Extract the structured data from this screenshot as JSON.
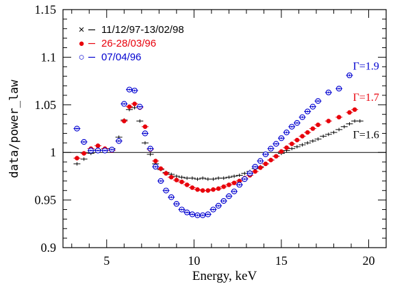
{
  "chart_data": {
    "type": "scatter",
    "xlabel": "Energy, keV",
    "ylabel": "data/power_law",
    "xlim": [
      2.5,
      21
    ],
    "ylim": [
      0.9,
      1.15
    ],
    "xticks": [
      5,
      10,
      15,
      20
    ],
    "yticks": [
      0.9,
      0.95,
      1,
      1.05,
      1.1,
      1.15
    ],
    "ytick_labels": [
      "0.9",
      "0.95",
      "1",
      "1.05",
      "1.1",
      "1.15"
    ],
    "reference_line": 1,
    "grid": false,
    "legend_position": "top-left",
    "series": [
      {
        "name": "11/12/97-13/02/98",
        "marker_label": "×",
        "color": "#000000",
        "marker": "cross",
        "x": [
          3.3,
          3.7,
          4.1,
          4.5,
          4.9,
          5.3,
          5.7,
          6.0,
          6.3,
          6.6,
          6.9,
          7.2,
          7.5,
          7.8,
          8.1,
          8.4,
          8.7,
          9.0,
          9.3,
          9.6,
          9.9,
          10.2,
          10.5,
          10.8,
          11.1,
          11.4,
          11.7,
          12.0,
          12.3,
          12.6,
          12.9,
          13.2,
          13.5,
          13.8,
          14.1,
          14.4,
          14.7,
          15.0,
          15.3,
          15.6,
          15.9,
          16.2,
          16.5,
          16.8,
          17.1,
          17.4,
          17.7,
          18.0,
          18.3,
          18.6,
          18.9,
          19.2,
          19.5
        ],
        "y": [
          0.988,
          0.993,
          0.999,
          1.003,
          1.004,
          1.004,
          1.016,
          1.034,
          1.045,
          1.047,
          1.033,
          1.01,
          0.998,
          0.988,
          0.982,
          0.979,
          0.977,
          0.975,
          0.974,
          0.973,
          0.973,
          0.972,
          0.973,
          0.972,
          0.972,
          0.973,
          0.973,
          0.974,
          0.975,
          0.976,
          0.978,
          0.98,
          0.983,
          0.985,
          0.988,
          0.992,
          0.996,
          0.999,
          1.002,
          1.004,
          1.006,
          1.008,
          1.01,
          1.012,
          1.014,
          1.017,
          1.019,
          1.021,
          1.024,
          1.027,
          1.03,
          1.033,
          1.033
        ]
      },
      {
        "name": "26-28/03/96",
        "marker_label": "●",
        "color": "#e8000b",
        "marker": "filled-circle",
        "x": [
          3.3,
          3.7,
          4.1,
          4.5,
          4.9,
          5.3,
          5.7,
          6.0,
          6.3,
          6.6,
          6.9,
          7.2,
          7.5,
          7.8,
          8.1,
          8.4,
          8.7,
          9.0,
          9.3,
          9.6,
          9.9,
          10.2,
          10.5,
          10.8,
          11.1,
          11.4,
          11.7,
          12.0,
          12.3,
          12.6,
          12.9,
          13.2,
          13.5,
          13.8,
          14.1,
          14.4,
          14.7,
          15.0,
          15.3,
          15.6,
          15.9,
          16.2,
          16.5,
          16.8,
          17.1,
          17.7,
          18.3,
          18.9,
          19.2
        ],
        "y": [
          0.994,
          0.999,
          1.004,
          1.007,
          1.004,
          1.002,
          1.012,
          1.033,
          1.048,
          1.051,
          1.047,
          1.027,
          1.003,
          0.991,
          0.983,
          0.978,
          0.974,
          0.971,
          0.969,
          0.966,
          0.963,
          0.961,
          0.96,
          0.96,
          0.961,
          0.962,
          0.964,
          0.966,
          0.968,
          0.97,
          0.973,
          0.976,
          0.98,
          0.984,
          0.988,
          0.992,
          0.996,
          1.001,
          1.005,
          1.009,
          1.013,
          1.017,
          1.021,
          1.025,
          1.029,
          1.033,
          1.037,
          1.042,
          1.045
        ]
      },
      {
        "name": "07/04/96",
        "marker_label": "○",
        "color": "#0000d0",
        "marker": "open-circle",
        "x": [
          3.3,
          3.7,
          4.1,
          4.5,
          4.9,
          5.3,
          5.7,
          6.0,
          6.3,
          6.6,
          6.9,
          7.2,
          7.5,
          7.8,
          8.1,
          8.4,
          8.7,
          9.0,
          9.3,
          9.6,
          9.9,
          10.2,
          10.5,
          10.8,
          11.1,
          11.4,
          11.7,
          12.0,
          12.3,
          12.6,
          12.9,
          13.2,
          13.5,
          13.8,
          14.1,
          14.4,
          14.7,
          15.0,
          15.3,
          15.6,
          15.9,
          16.2,
          16.5,
          16.8,
          17.1,
          17.7,
          18.3,
          18.9
        ],
        "y": [
          1.025,
          1.011,
          1.002,
          1.002,
          1.002,
          1.003,
          1.012,
          1.051,
          1.066,
          1.065,
          1.048,
          1.02,
          1.004,
          0.985,
          0.97,
          0.96,
          0.953,
          0.946,
          0.94,
          0.937,
          0.935,
          0.934,
          0.934,
          0.935,
          0.94,
          0.944,
          0.949,
          0.954,
          0.959,
          0.966,
          0.972,
          0.978,
          0.985,
          0.991,
          0.998,
          1.004,
          1.009,
          1.015,
          1.021,
          1.027,
          1.031,
          1.037,
          1.043,
          1.048,
          1.054,
          1.063,
          1.067,
          1.081
        ]
      }
    ],
    "annotations": [
      {
        "text": "Γ=1.9",
        "x": 19.1,
        "y": 1.087,
        "color": "#0000d0"
      },
      {
        "text": "Γ=1.7",
        "x": 19.1,
        "y": 1.054,
        "color": "#e8000b"
      },
      {
        "text": "Γ=1.6",
        "x": 19.1,
        "y": 1.015,
        "color": "#000000"
      }
    ]
  }
}
